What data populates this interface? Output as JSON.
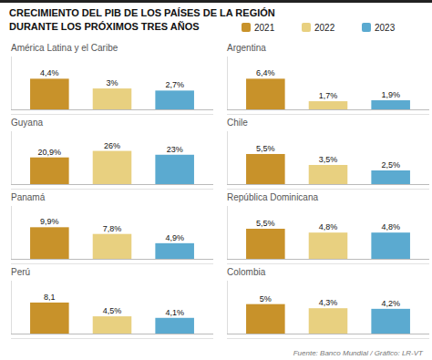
{
  "title": "CRECIMIENTO DEL PIB DE LOS PAÍSES DE LA REGIÓN",
  "subtitle": "DURANTE LOS PRÓXIMOS TRES AÑOS",
  "annotations": [
    "Fuente: Banco Mundial / Gráfico: LR-VT"
  ],
  "chart_data": [
    {
      "type": "bar",
      "title": "América Latina y el Caribe",
      "categories": [
        null
      ],
      "ylim": [
        0,
        7.59
      ],
      "tick_labels": false,
      "data_labels": true,
      "legend": "top",
      "series": [
        {
          "name": "2021",
          "color": "#C8922A",
          "values": [
            4.4
          ],
          "value_labels": [
            "4,4%"
          ]
        },
        {
          "name": "2022",
          "color": "#E8D080",
          "values": [
            3.0
          ],
          "value_labels": [
            "3%"
          ]
        },
        {
          "name": "2023",
          "color": "#5BAAD0",
          "values": [
            2.7
          ],
          "value_labels": [
            "2,7%"
          ]
        }
      ]
    },
    {
      "type": "bar",
      "title": "Guyana",
      "categories": [
        null
      ],
      "ylim": [
        0,
        41.4
      ],
      "tick_labels": false,
      "data_labels": true,
      "series": [
        {
          "name": "2021",
          "color": "#C8922A",
          "values": [
            20.9
          ],
          "value_labels": [
            "20,9%"
          ]
        },
        {
          "name": "2022",
          "color": "#E8D080",
          "values": [
            26.0
          ],
          "value_labels": [
            "26%"
          ]
        },
        {
          "name": "2023",
          "color": "#5BAAD0",
          "values": [
            23.0
          ],
          "value_labels": [
            "23%"
          ]
        }
      ]
    },
    {
      "type": "bar",
      "title": "Panamá",
      "categories": [
        null
      ],
      "ylim": [
        0,
        16.56
      ],
      "tick_labels": false,
      "data_labels": true,
      "series": [
        {
          "name": "2021",
          "color": "#C8922A",
          "values": [
            9.9
          ],
          "value_labels": [
            "9,9%"
          ]
        },
        {
          "name": "2022",
          "color": "#E8D080",
          "values": [
            7.8
          ],
          "value_labels": [
            "7,8%"
          ]
        },
        {
          "name": "2023",
          "color": "#5BAAD0",
          "values": [
            4.9
          ],
          "value_labels": [
            "4,9%"
          ]
        }
      ]
    },
    {
      "type": "bar",
      "title": "Perú",
      "categories": [
        null
      ],
      "ylim": [
        0,
        13.8
      ],
      "tick_labels": false,
      "data_labels": true,
      "series": [
        {
          "name": "2021",
          "color": "#C8922A",
          "values": [
            8.1
          ],
          "value_labels": [
            "8,1"
          ]
        },
        {
          "name": "2022",
          "color": "#E8D080",
          "values": [
            4.5
          ],
          "value_labels": [
            "4,5%"
          ]
        },
        {
          "name": "2023",
          "color": "#5BAAD0",
          "values": [
            4.1
          ],
          "value_labels": [
            "4,1%"
          ]
        }
      ]
    },
    {
      "type": "bar",
      "title": "Argentina",
      "categories": [
        null
      ],
      "ylim": [
        0,
        11.04
      ],
      "tick_labels": false,
      "data_labels": true,
      "series": [
        {
          "name": "2021",
          "color": "#C8922A",
          "values": [
            6.4
          ],
          "value_labels": [
            "6,4%"
          ]
        },
        {
          "name": "2022",
          "color": "#E8D080",
          "values": [
            1.7
          ],
          "value_labels": [
            "1,7%"
          ]
        },
        {
          "name": "2023",
          "color": "#5BAAD0",
          "values": [
            1.9
          ],
          "value_labels": [
            "1,9%"
          ]
        }
      ]
    },
    {
      "type": "bar",
      "title": "Chile",
      "categories": [
        null
      ],
      "ylim": [
        0,
        9.66
      ],
      "tick_labels": false,
      "data_labels": true,
      "series": [
        {
          "name": "2021",
          "color": "#C8922A",
          "values": [
            5.5
          ],
          "value_labels": [
            "5,5%"
          ]
        },
        {
          "name": "2022",
          "color": "#E8D080",
          "values": [
            3.5
          ],
          "value_labels": [
            "3,5%"
          ]
        },
        {
          "name": "2023",
          "color": "#5BAAD0",
          "values": [
            2.5
          ],
          "value_labels": [
            "2,5%"
          ]
        }
      ]
    },
    {
      "type": "bar",
      "title": "República Dominicana",
      "categories": [
        null
      ],
      "ylim": [
        0,
        9.66
      ],
      "tick_labels": false,
      "data_labels": true,
      "series": [
        {
          "name": "2021",
          "color": "#C8922A",
          "values": [
            5.5
          ],
          "value_labels": [
            "5,5%"
          ]
        },
        {
          "name": "2022",
          "color": "#E8D080",
          "values": [
            4.8
          ],
          "value_labels": [
            "4,8%"
          ]
        },
        {
          "name": "2023",
          "color": "#5BAAD0",
          "values": [
            4.8
          ],
          "value_labels": [
            "4,8%"
          ]
        }
      ]
    },
    {
      "type": "bar",
      "title": "Colombia",
      "categories": [
        null
      ],
      "ylim": [
        0,
        8.97
      ],
      "tick_labels": false,
      "data_labels": true,
      "series": [
        {
          "name": "2021",
          "color": "#C8922A",
          "values": [
            5.0
          ],
          "value_labels": [
            "5%"
          ]
        },
        {
          "name": "2022",
          "color": "#E8D080",
          "values": [
            4.3
          ],
          "value_labels": [
            "4,3%"
          ]
        },
        {
          "name": "2023",
          "color": "#5BAAD0",
          "values": [
            4.2
          ],
          "value_labels": [
            "4,2%"
          ]
        }
      ]
    }
  ]
}
